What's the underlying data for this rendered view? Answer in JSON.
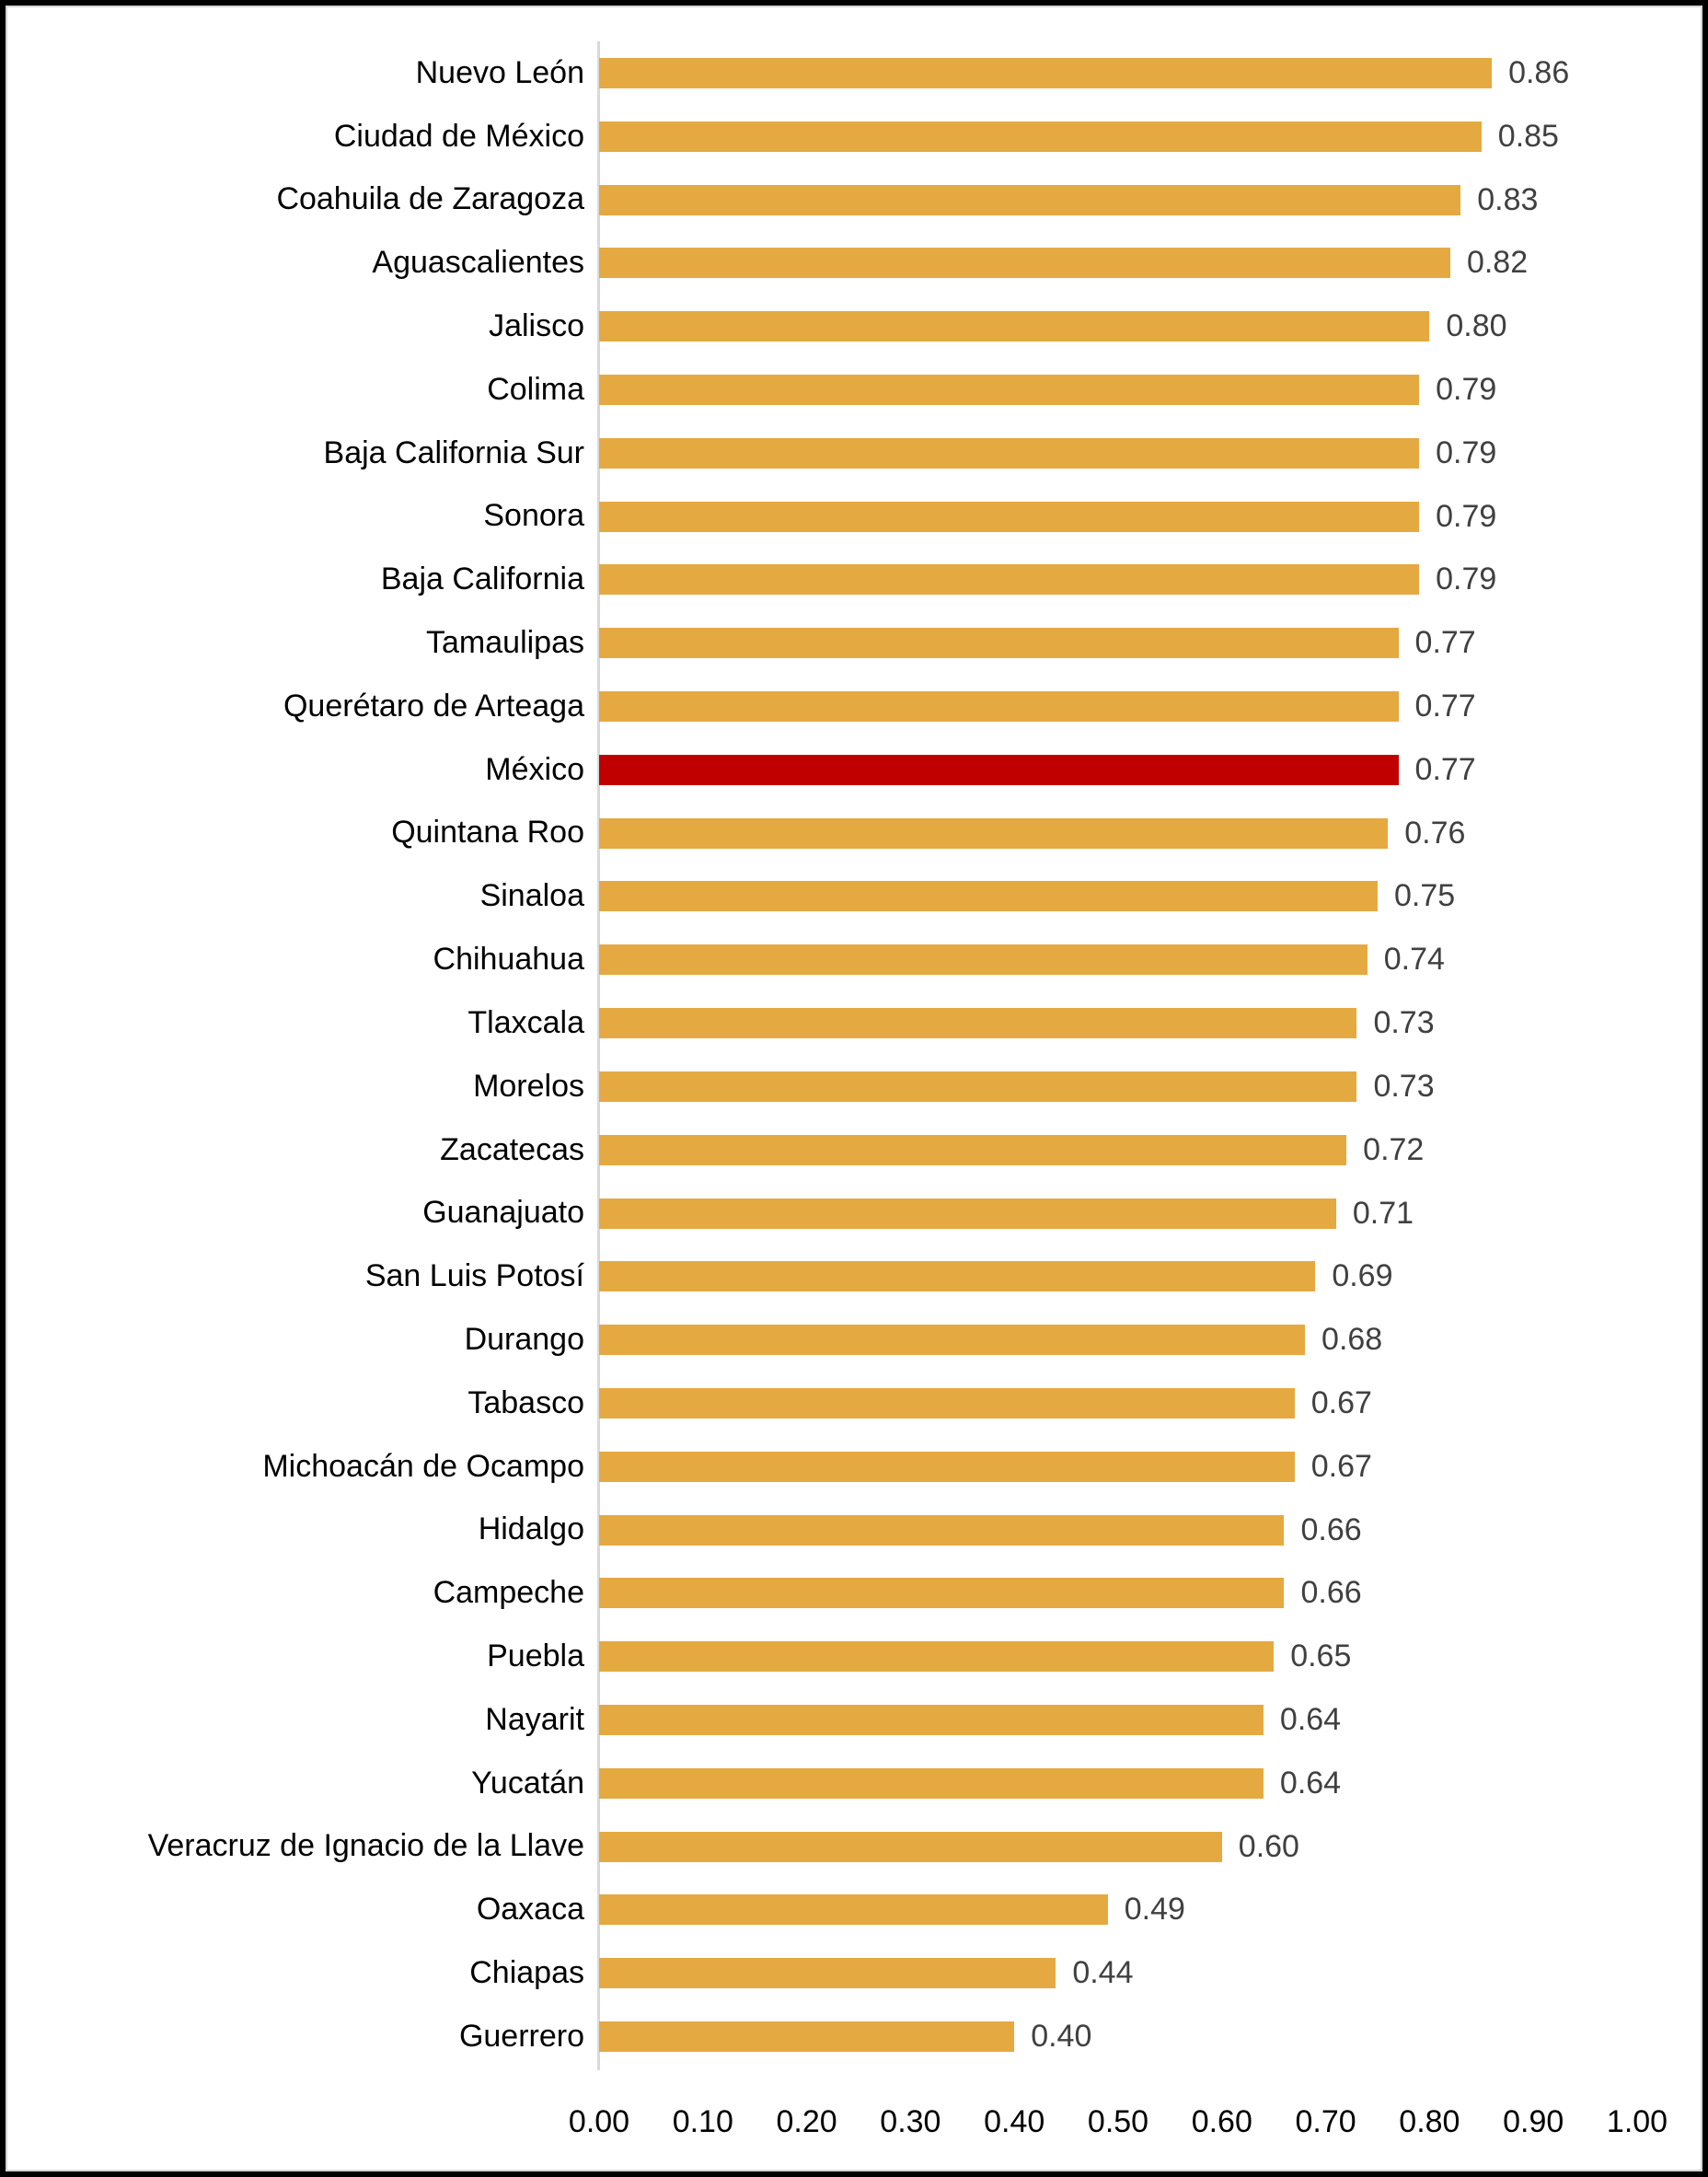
{
  "chart_data": {
    "type": "bar",
    "orientation": "horizontal",
    "title": "",
    "xlabel": "",
    "ylabel": "",
    "xlim": [
      0.0,
      1.0
    ],
    "grid": false,
    "value_label_decimals": 2,
    "x_ticks": [
      "0.00",
      "0.10",
      "0.20",
      "0.30",
      "0.40",
      "0.50",
      "0.60",
      "0.70",
      "0.80",
      "0.90",
      "1.00"
    ],
    "x_tick_values": [
      0.0,
      0.1,
      0.2,
      0.3,
      0.4,
      0.5,
      0.6,
      0.7,
      0.8,
      0.9,
      1.0
    ],
    "bar_color": "#E5A942",
    "highlight_color": "#C00000",
    "value_label_color": "#404040",
    "category_label_color": "#000000",
    "axis_line_color": "#D9D9D9",
    "categories": [
      {
        "label": "Nuevo León",
        "value": 0.86,
        "display": "0.86",
        "highlight": false
      },
      {
        "label": "Ciudad de México",
        "value": 0.85,
        "display": "0.85",
        "highlight": false
      },
      {
        "label": "Coahuila de Zaragoza",
        "value": 0.83,
        "display": "0.83",
        "highlight": false
      },
      {
        "label": "Aguascalientes",
        "value": 0.82,
        "display": "0.82",
        "highlight": false
      },
      {
        "label": "Jalisco",
        "value": 0.8,
        "display": "0.80",
        "highlight": false
      },
      {
        "label": "Colima",
        "value": 0.79,
        "display": "0.79",
        "highlight": false
      },
      {
        "label": "Baja California Sur",
        "value": 0.79,
        "display": "0.79",
        "highlight": false
      },
      {
        "label": "Sonora",
        "value": 0.79,
        "display": "0.79",
        "highlight": false
      },
      {
        "label": "Baja California",
        "value": 0.79,
        "display": "0.79",
        "highlight": false
      },
      {
        "label": "Tamaulipas",
        "value": 0.77,
        "display": "0.77",
        "highlight": false
      },
      {
        "label": "Querétaro de Arteaga",
        "value": 0.77,
        "display": "0.77",
        "highlight": false
      },
      {
        "label": "México",
        "value": 0.77,
        "display": "0.77",
        "highlight": true
      },
      {
        "label": "Quintana Roo",
        "value": 0.76,
        "display": "0.76",
        "highlight": false
      },
      {
        "label": "Sinaloa",
        "value": 0.75,
        "display": "0.75",
        "highlight": false
      },
      {
        "label": "Chihuahua",
        "value": 0.74,
        "display": "0.74",
        "highlight": false
      },
      {
        "label": "Tlaxcala",
        "value": 0.73,
        "display": "0.73",
        "highlight": false
      },
      {
        "label": "Morelos",
        "value": 0.73,
        "display": "0.73",
        "highlight": false
      },
      {
        "label": "Zacatecas",
        "value": 0.72,
        "display": "0.72",
        "highlight": false
      },
      {
        "label": "Guanajuato",
        "value": 0.71,
        "display": "0.71",
        "highlight": false
      },
      {
        "label": "San Luis Potosí",
        "value": 0.69,
        "display": "0.69",
        "highlight": false
      },
      {
        "label": "Durango",
        "value": 0.68,
        "display": "0.68",
        "highlight": false
      },
      {
        "label": "Tabasco",
        "value": 0.67,
        "display": "0.67",
        "highlight": false
      },
      {
        "label": "Michoacán de Ocampo",
        "value": 0.67,
        "display": "0.67",
        "highlight": false
      },
      {
        "label": "Hidalgo",
        "value": 0.66,
        "display": "0.66",
        "highlight": false
      },
      {
        "label": "Campeche",
        "value": 0.66,
        "display": "0.66",
        "highlight": false
      },
      {
        "label": "Puebla",
        "value": 0.65,
        "display": "0.65",
        "highlight": false
      },
      {
        "label": "Nayarit",
        "value": 0.64,
        "display": "0.64",
        "highlight": false
      },
      {
        "label": "Yucatán",
        "value": 0.64,
        "display": "0.64",
        "highlight": false
      },
      {
        "label": "Veracruz de Ignacio de la Llave",
        "value": 0.6,
        "display": "0.60",
        "highlight": false
      },
      {
        "label": "Oaxaca",
        "value": 0.49,
        "display": "0.49",
        "highlight": false
      },
      {
        "label": "Chiapas",
        "value": 0.44,
        "display": "0.44",
        "highlight": false
      },
      {
        "label": "Guerrero",
        "value": 0.4,
        "display": "0.40",
        "highlight": false
      }
    ]
  }
}
